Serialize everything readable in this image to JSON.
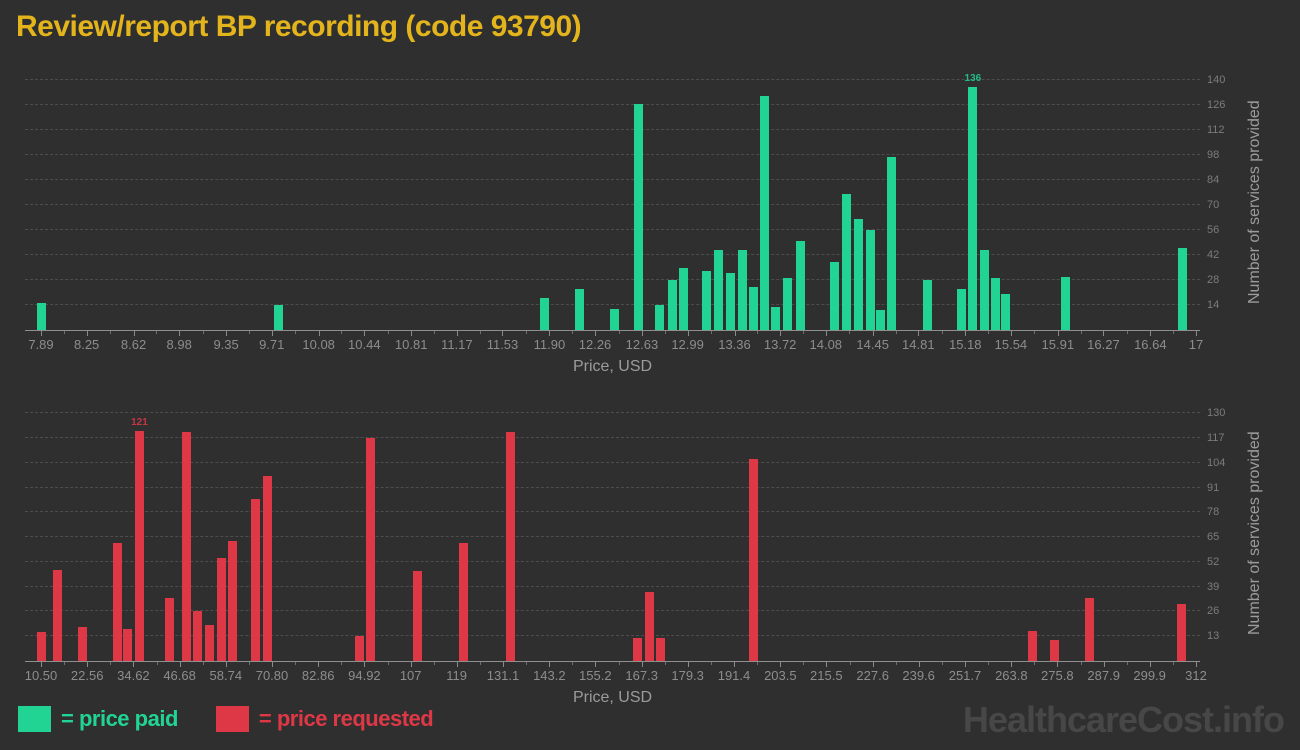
{
  "page": {
    "title": "Review/report BP recording (code 93790)",
    "watermark": "HealthcareCost.info"
  },
  "legend": {
    "items": [
      {
        "label": "= price paid",
        "color": "#21d494"
      },
      {
        "label": "= price requested",
        "color": "#de3847"
      }
    ]
  },
  "chart_data": [
    {
      "type": "bar",
      "name": "price paid",
      "color": "#21d494",
      "xlabel": "Price, USD",
      "ylabel": "Number of services provided",
      "grid": "horizontal-dashed",
      "legend_position": "bottom-left",
      "x_min": 7.89,
      "x_max": 17,
      "x_ticks": [
        "7.89",
        "8.25",
        "8.62",
        "8.98",
        "9.35",
        "9.71",
        "10.08",
        "10.44",
        "10.81",
        "11.17",
        "11.53",
        "11.90",
        "12.26",
        "12.63",
        "12.99",
        "13.36",
        "13.72",
        "14.08",
        "14.45",
        "14.81",
        "15.18",
        "15.54",
        "15.91",
        "16.27",
        "16.64",
        "17"
      ],
      "y_ticks": [
        14,
        28,
        42,
        56,
        70,
        84,
        98,
        112,
        126,
        140
      ],
      "y_scale_max": 143,
      "points_format": "[price_usd, count, optional_data_label]",
      "points": [
        [
          7.89,
          15
        ],
        [
          9.76,
          14
        ],
        [
          11.86,
          18
        ],
        [
          12.14,
          23
        ],
        [
          12.41,
          12
        ],
        [
          12.6,
          127
        ],
        [
          12.77,
          14
        ],
        [
          12.87,
          28
        ],
        [
          12.96,
          35
        ],
        [
          13.14,
          33
        ],
        [
          13.23,
          45
        ],
        [
          13.33,
          32
        ],
        [
          13.42,
          45
        ],
        [
          13.51,
          24
        ],
        [
          13.6,
          131
        ],
        [
          13.68,
          13
        ],
        [
          13.78,
          29
        ],
        [
          13.88,
          50
        ],
        [
          14.15,
          38
        ],
        [
          14.24,
          76
        ],
        [
          14.34,
          62
        ],
        [
          14.43,
          56
        ],
        [
          14.51,
          11
        ],
        [
          14.6,
          97
        ],
        [
          14.88,
          28
        ],
        [
          15.15,
          23
        ],
        [
          15.24,
          136,
          "136"
        ],
        [
          15.33,
          45
        ],
        [
          15.42,
          29
        ],
        [
          15.5,
          20
        ],
        [
          15.97,
          30
        ],
        [
          16.89,
          46
        ]
      ]
    },
    {
      "type": "bar",
      "name": "price requested",
      "color": "#de3847",
      "xlabel": "Price, USD",
      "ylabel": "Number of services provided",
      "grid": "horizontal-dashed",
      "legend_position": "bottom-left",
      "x_min": 10.5,
      "x_max": 312,
      "x_ticks": [
        "10.50",
        "22.56",
        "34.62",
        "46.68",
        "58.74",
        "70.80",
        "82.86",
        "94.92",
        "107",
        "119",
        "131.1",
        "143.2",
        "155.2",
        "167.3",
        "179.3",
        "191.4",
        "203.5",
        "215.5",
        "227.6",
        "239.6",
        "251.7",
        "263.8",
        "275.8",
        "287.9",
        "299.9",
        "312"
      ],
      "y_ticks": [
        13,
        26,
        39,
        52,
        65,
        78,
        91,
        104,
        117,
        130
      ],
      "y_scale_max": 134.4,
      "points_format": "[price_usd, count, optional_data_label]",
      "points": [
        [
          10.5,
          15
        ],
        [
          14.8,
          48
        ],
        [
          21.3,
          18
        ],
        [
          30.4,
          62
        ],
        [
          33.2,
          17
        ],
        [
          36.2,
          121,
          "121"
        ],
        [
          44.0,
          33
        ],
        [
          48.4,
          120
        ],
        [
          51.3,
          26
        ],
        [
          54.4,
          19
        ],
        [
          57.5,
          54
        ],
        [
          60.4,
          63
        ],
        [
          66.4,
          85
        ],
        [
          69.5,
          97
        ],
        [
          93.6,
          13
        ],
        [
          96.6,
          117
        ],
        [
          108.9,
          47
        ],
        [
          120.9,
          62
        ],
        [
          133.1,
          120
        ],
        [
          166.2,
          12
        ],
        [
          169.3,
          36
        ],
        [
          172.3,
          12
        ],
        [
          196.4,
          106
        ],
        [
          269.2,
          16
        ],
        [
          275.0,
          11
        ],
        [
          284.3,
          33
        ],
        [
          308.2,
          30
        ]
      ]
    }
  ]
}
